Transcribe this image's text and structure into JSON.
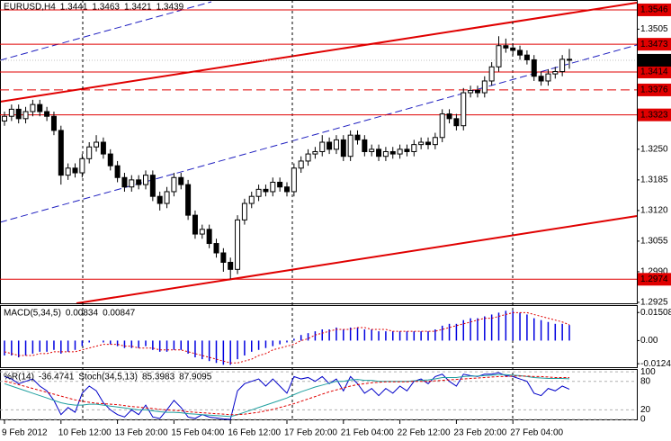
{
  "chart_data": [
    {
      "type": "candlestick",
      "title": "EURUSD,H4",
      "categories": [
        "9 Feb 2012",
        null,
        null,
        null,
        null,
        null,
        null,
        null,
        "10 Feb 12:00",
        null,
        null,
        null,
        null,
        null,
        null,
        null,
        "13 Feb 20:00",
        null,
        null,
        null,
        null,
        null,
        null,
        null,
        "15 Feb 04:00",
        null,
        null,
        null,
        null,
        null,
        null,
        null,
        "16 Feb 12:00",
        null,
        null,
        null,
        null,
        null,
        null,
        null,
        "17 Feb 20:00",
        null,
        null,
        null,
        null,
        null,
        null,
        null,
        "21 Feb 04:00",
        null,
        null,
        null,
        null,
        null,
        null,
        null,
        "22 Feb 12:00",
        null,
        null,
        null,
        null,
        null,
        null,
        null,
        "23 Feb 20:00",
        null,
        null,
        null,
        null,
        null,
        null,
        null,
        "27 Feb 04:00",
        null,
        null,
        null,
        null,
        null,
        null,
        null,
        null
      ],
      "open": [
        1.331,
        1.332,
        1.3335,
        1.3315,
        1.333,
        1.3345,
        1.333,
        1.332,
        1.329,
        1.3195,
        1.321,
        1.32,
        1.323,
        1.3255,
        1.3265,
        1.324,
        1.3215,
        1.319,
        1.317,
        1.3185,
        1.3175,
        1.3195,
        1.315,
        1.3135,
        1.316,
        1.319,
        1.3175,
        1.311,
        1.307,
        1.308,
        1.305,
        1.303,
        1.301,
        1.2995,
        1.31,
        1.3135,
        1.315,
        1.3165,
        1.316,
        1.318,
        1.317,
        1.316,
        1.321,
        1.3225,
        1.324,
        1.3245,
        1.3265,
        1.325,
        1.327,
        1.3235,
        1.328,
        1.327,
        1.3245,
        1.325,
        1.3235,
        1.3245,
        1.324,
        1.325,
        1.3245,
        1.326,
        1.3265,
        1.326,
        1.3275,
        1.3325,
        1.3315,
        1.33,
        1.337,
        1.3375,
        1.337,
        1.3395,
        1.3425,
        1.347,
        1.3465,
        1.346,
        1.345,
        1.344,
        1.3405,
        1.3395,
        1.341,
        1.3415,
        1.3441
      ],
      "high": [
        1.333,
        1.3345,
        1.3345,
        1.334,
        1.3355,
        1.3355,
        1.334,
        1.333,
        1.33,
        1.322,
        1.322,
        1.324,
        1.3265,
        1.328,
        1.3275,
        1.325,
        1.3225,
        1.32,
        1.3195,
        1.3195,
        1.3205,
        1.3205,
        1.316,
        1.317,
        1.32,
        1.32,
        1.3185,
        1.312,
        1.309,
        1.309,
        1.306,
        1.304,
        1.302,
        1.311,
        1.3145,
        1.316,
        1.3175,
        1.3175,
        1.319,
        1.319,
        1.318,
        1.322,
        1.3235,
        1.325,
        1.3255,
        1.328,
        1.3275,
        1.328,
        1.328,
        1.329,
        1.329,
        1.328,
        1.326,
        1.326,
        1.3255,
        1.3255,
        1.326,
        1.326,
        1.327,
        1.3275,
        1.3275,
        1.3285,
        1.3335,
        1.3335,
        1.3325,
        1.338,
        1.3385,
        1.3385,
        1.3405,
        1.3435,
        1.349,
        1.3485,
        1.3475,
        1.347,
        1.346,
        1.345,
        1.3415,
        1.342,
        1.3425,
        1.345,
        1.3463
      ],
      "low": [
        1.33,
        1.331,
        1.3305,
        1.3305,
        1.332,
        1.332,
        1.331,
        1.328,
        1.3175,
        1.3185,
        1.319,
        1.319,
        1.322,
        1.3245,
        1.323,
        1.3205,
        1.318,
        1.316,
        1.316,
        1.3165,
        1.3165,
        1.314,
        1.312,
        1.3125,
        1.315,
        1.3165,
        1.31,
        1.306,
        1.306,
        1.304,
        1.302,
        1.299,
        1.2975,
        1.2985,
        1.309,
        1.3125,
        1.314,
        1.315,
        1.315,
        1.316,
        1.315,
        1.315,
        1.32,
        1.3215,
        1.323,
        1.3235,
        1.324,
        1.324,
        1.3225,
        1.3225,
        1.326,
        1.3235,
        1.3235,
        1.3225,
        1.3225,
        1.323,
        1.323,
        1.3235,
        1.3235,
        1.325,
        1.325,
        1.325,
        1.3265,
        1.3305,
        1.329,
        1.329,
        1.336,
        1.336,
        1.336,
        1.3385,
        1.3415,
        1.3455,
        1.345,
        1.344,
        1.343,
        1.3395,
        1.3385,
        1.3385,
        1.34,
        1.3405,
        1.3421
      ],
      "close": [
        1.332,
        1.3335,
        1.3315,
        1.333,
        1.3345,
        1.333,
        1.332,
        1.329,
        1.3195,
        1.321,
        1.32,
        1.323,
        1.3255,
        1.3265,
        1.324,
        1.3215,
        1.319,
        1.317,
        1.3185,
        1.3175,
        1.3195,
        1.315,
        1.3135,
        1.316,
        1.319,
        1.3175,
        1.311,
        1.307,
        1.308,
        1.305,
        1.303,
        1.301,
        1.2995,
        1.31,
        1.3135,
        1.315,
        1.3165,
        1.316,
        1.318,
        1.317,
        1.316,
        1.321,
        1.3225,
        1.324,
        1.3245,
        1.3265,
        1.325,
        1.327,
        1.3235,
        1.328,
        1.327,
        1.3245,
        1.325,
        1.3235,
        1.3245,
        1.324,
        1.325,
        1.3245,
        1.326,
        1.3265,
        1.326,
        1.3275,
        1.3325,
        1.3315,
        1.33,
        1.337,
        1.3375,
        1.337,
        1.3395,
        1.3425,
        1.347,
        1.3465,
        1.346,
        1.345,
        1.344,
        1.3405,
        1.3395,
        1.341,
        1.3415,
        1.3441,
        1.3439
      ],
      "ylim": [
        1.2923,
        1.3565
      ],
      "yticks": [
        1.3505,
        {
          "value": 1.325,
          "label": "1.3250"
        },
        1.3185,
        {
          "value": 1.312,
          "label": "1.3120"
        },
        1.3055,
        {
          "value": 1.299,
          "label": "1.2990"
        },
        1.2925
      ],
      "levels": [
        {
          "value": 1.3546,
          "color": "#e00000"
        },
        {
          "value": 1.3473,
          "color": "#e00000"
        },
        {
          "value": 1.3414,
          "color": "#e00000"
        },
        {
          "value": 1.3376,
          "color": "#e00000",
          "dashed": true
        },
        {
          "value": 1.3323,
          "color": "#e00000"
        },
        {
          "value": 1.2974,
          "color": "#e00000"
        }
      ],
      "bull_color": "#ffffff",
      "bear_color": "#000000"
    },
    {
      "type": "macd",
      "title": "MACD(5,34,5)",
      "histogram": {
        "color": "#0000e0",
        "values": [
          -0.008,
          -0.008,
          -0.009,
          -0.008,
          -0.007,
          -0.006,
          -0.006,
          -0.005,
          -0.007,
          -0.006,
          -0.005,
          -0.003,
          -0.001,
          0.0,
          -0.001,
          -0.002,
          -0.003,
          -0.004,
          -0.004,
          -0.004,
          -0.003,
          -0.005,
          -0.006,
          -0.006,
          -0.005,
          -0.005,
          -0.007,
          -0.009,
          -0.01,
          -0.011,
          -0.012,
          -0.013,
          -0.013,
          -0.01,
          -0.008,
          -0.006,
          -0.005,
          -0.004,
          -0.003,
          -0.002,
          -0.001,
          0.001,
          0.003,
          0.004,
          0.005,
          0.006,
          0.006,
          0.007,
          0.006,
          0.007,
          0.007,
          0.006,
          0.006,
          0.005,
          0.005,
          0.005,
          0.005,
          0.005,
          0.005,
          0.005,
          0.005,
          0.006,
          0.008,
          0.009,
          0.009,
          0.011,
          0.012,
          0.012,
          0.013,
          0.014,
          0.015,
          0.016,
          0.016,
          0.015,
          0.014,
          0.012,
          0.011,
          0.01,
          0.009,
          0.009,
          0.00834
        ]
      },
      "signal": {
        "color": "#e00000",
        "values": [
          -0.006,
          -0.007,
          -0.008,
          -0.008,
          -0.008,
          -0.007,
          -0.007,
          -0.006,
          -0.006,
          -0.006,
          -0.006,
          -0.005,
          -0.004,
          -0.003,
          -0.002,
          -0.002,
          -0.002,
          -0.003,
          -0.003,
          -0.004,
          -0.004,
          -0.004,
          -0.005,
          -0.005,
          -0.005,
          -0.005,
          -0.006,
          -0.007,
          -0.008,
          -0.009,
          -0.01,
          -0.011,
          -0.012,
          -0.012,
          -0.011,
          -0.01,
          -0.008,
          -0.007,
          -0.005,
          -0.004,
          -0.003,
          -0.002,
          0.0,
          0.001,
          0.003,
          0.004,
          0.005,
          0.006,
          0.006,
          0.006,
          0.007,
          0.007,
          0.006,
          0.006,
          0.006,
          0.005,
          0.005,
          0.005,
          0.005,
          0.005,
          0.005,
          0.005,
          0.006,
          0.007,
          0.008,
          0.009,
          0.01,
          0.011,
          0.012,
          0.012,
          0.013,
          0.014,
          0.015,
          0.015,
          0.015,
          0.014,
          0.013,
          0.012,
          0.011,
          0.01,
          0.00847
        ]
      },
      "ylim": [
        -0.01429,
        0.01857
      ],
      "yticks": [
        0.01508,
        {
          "value": 0,
          "label": "0.00"
        },
        -0.01243
      ]
    },
    {
      "type": "line",
      "ylim": [
        0,
        104
      ],
      "y2lim": [
        -100,
        4
      ],
      "yticks": [
        100,
        80,
        20,
        0
      ],
      "series": [
        {
          "name": "%R(14)",
          "color": "#0000c8",
          "axis": "y2",
          "values": [
            -10,
            -15,
            -25,
            -20,
            -15,
            -30,
            -40,
            -60,
            -90,
            -75,
            -85,
            -45,
            -30,
            -40,
            -65,
            -80,
            -90,
            -95,
            -80,
            -90,
            -70,
            -95,
            -98,
            -80,
            -60,
            -75,
            -95,
            -98,
            -90,
            -95,
            -97,
            -99,
            -100,
            -40,
            -25,
            -20,
            -15,
            -30,
            -15,
            -30,
            -45,
            -10,
            -15,
            -12,
            -20,
            -10,
            -25,
            -15,
            -40,
            -10,
            -25,
            -45,
            -35,
            -50,
            -35,
            -45,
            -30,
            -40,
            -20,
            -15,
            -25,
            -10,
            -5,
            -20,
            -30,
            -5,
            -8,
            -10,
            -5,
            -5,
            -2,
            -8,
            -10,
            -15,
            -20,
            -45,
            -50,
            -35,
            -40,
            -30,
            -36.4741
          ]
        },
        {
          "name": "Stoch(34,5,13)",
          "color": "#20a0a0",
          "values": [
            75,
            70,
            65,
            60,
            55,
            50,
            45,
            40,
            35,
            32,
            30,
            30,
            32,
            32,
            30,
            28,
            26,
            24,
            22,
            20,
            20,
            18,
            16,
            15,
            15,
            14,
            12,
            11,
            10,
            9,
            8,
            7,
            6,
            10,
            15,
            20,
            25,
            30,
            35,
            40,
            45,
            52,
            58,
            63,
            68,
            72,
            76,
            80,
            80,
            83,
            84,
            82,
            82,
            80,
            80,
            80,
            80,
            80,
            81,
            82,
            83,
            85,
            88,
            88,
            88,
            90,
            91,
            91,
            92,
            93,
            94,
            94,
            93,
            92,
            90,
            88,
            87,
            86,
            86,
            86,
            85.3983
          ]
        },
        {
          "color": "#e00000",
          "dashed": true,
          "values": [
            80,
            77,
            73,
            69,
            65,
            61,
            57,
            53,
            49,
            45,
            41,
            38,
            36,
            34,
            33,
            32,
            31,
            29,
            27,
            26,
            24,
            23,
            21,
            20,
            19,
            18,
            16,
            15,
            14,
            13,
            12,
            11,
            10,
            10,
            11,
            13,
            15,
            18,
            21,
            25,
            29,
            33,
            38,
            43,
            48,
            53,
            58,
            62,
            66,
            70,
            73,
            75,
            77,
            78,
            79,
            79,
            79,
            79,
            80,
            80,
            80,
            81,
            82,
            83,
            84,
            85,
            86,
            87,
            88,
            89,
            90,
            90,
            91,
            91,
            91,
            90,
            90,
            89,
            88,
            88,
            87.9095
          ]
        }
      ]
    }
  ]
}
